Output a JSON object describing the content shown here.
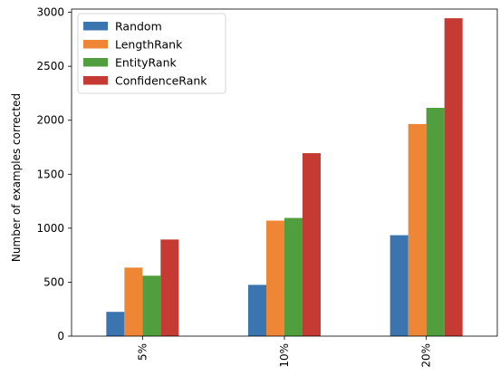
{
  "chart_data": {
    "type": "bar",
    "categories": [
      "5%",
      "10%",
      "20%"
    ],
    "series": [
      {
        "name": "Random",
        "color": "#3a75b0",
        "values": [
          225,
          475,
          935
        ]
      },
      {
        "name": "LengthRank",
        "color": "#ef8636",
        "values": [
          635,
          1070,
          1965
        ]
      },
      {
        "name": "EntityRank",
        "color": "#519e3e",
        "values": [
          560,
          1095,
          2115
        ]
      },
      {
        "name": "ConfidenceRank",
        "color": "#c53a32",
        "values": [
          895,
          1695,
          2945
        ]
      }
    ],
    "xlabel": "",
    "ylabel": "Number of examples corrected",
    "ylim": [
      0,
      3030
    ],
    "yticks": [
      0,
      500,
      1000,
      1500,
      2000,
      2500,
      3000
    ],
    "grid": false,
    "legend_position": "top-left",
    "x_tick_rotation": "vertical"
  }
}
